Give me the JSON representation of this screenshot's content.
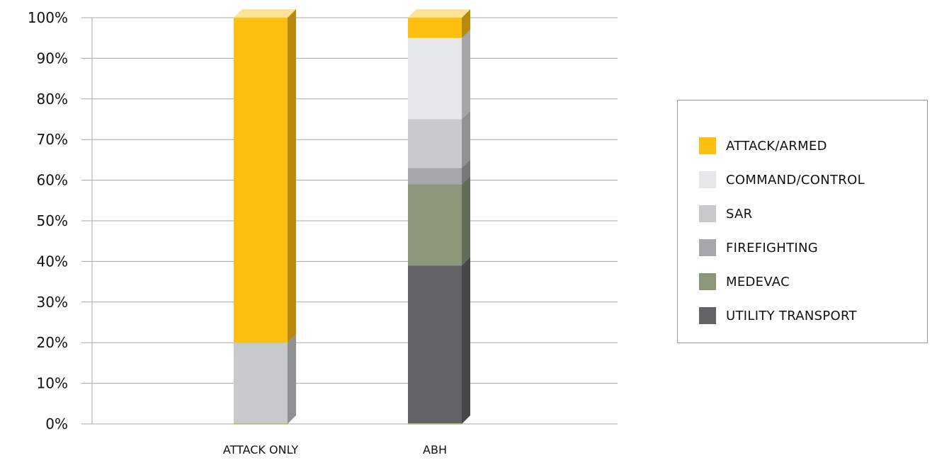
{
  "chart_data": {
    "type": "bar",
    "stacked": true,
    "percent": true,
    "categories": [
      "ATTACK ONLY",
      "ABH"
    ],
    "series": [
      {
        "name": "UTILITY TRANSPORT",
        "color": "#626365",
        "values": [
          0,
          39
        ]
      },
      {
        "name": "MEDEVAC",
        "color": "#8b967a",
        "values": [
          0,
          20
        ]
      },
      {
        "name": "FIREFIGHTING",
        "color": "#a6a7aa",
        "values": [
          0,
          4
        ]
      },
      {
        "name": "SAR",
        "color": "#c8c9cb",
        "values": [
          20,
          12
        ]
      },
      {
        "name": "COMMAND/CONTROL",
        "color": "#e6e7e8",
        "values": [
          0,
          20
        ]
      },
      {
        "name": "ATTACK/ARMED",
        "color": "#fdc010",
        "values": [
          80,
          5
        ]
      }
    ],
    "ylim": [
      0,
      100
    ],
    "yticks": [
      "0%",
      "10%",
      "20%",
      "30%",
      "40%",
      "50%",
      "60%",
      "70%",
      "80%",
      "90%",
      "100%"
    ],
    "grid": true,
    "legend_position": "right",
    "legend_order": [
      "ATTACK/ARMED",
      "COMMAND/CONTROL",
      "SAR",
      "FIREFIGHTING",
      "MEDEVAC",
      "UTILITY TRANSPORT"
    ]
  }
}
